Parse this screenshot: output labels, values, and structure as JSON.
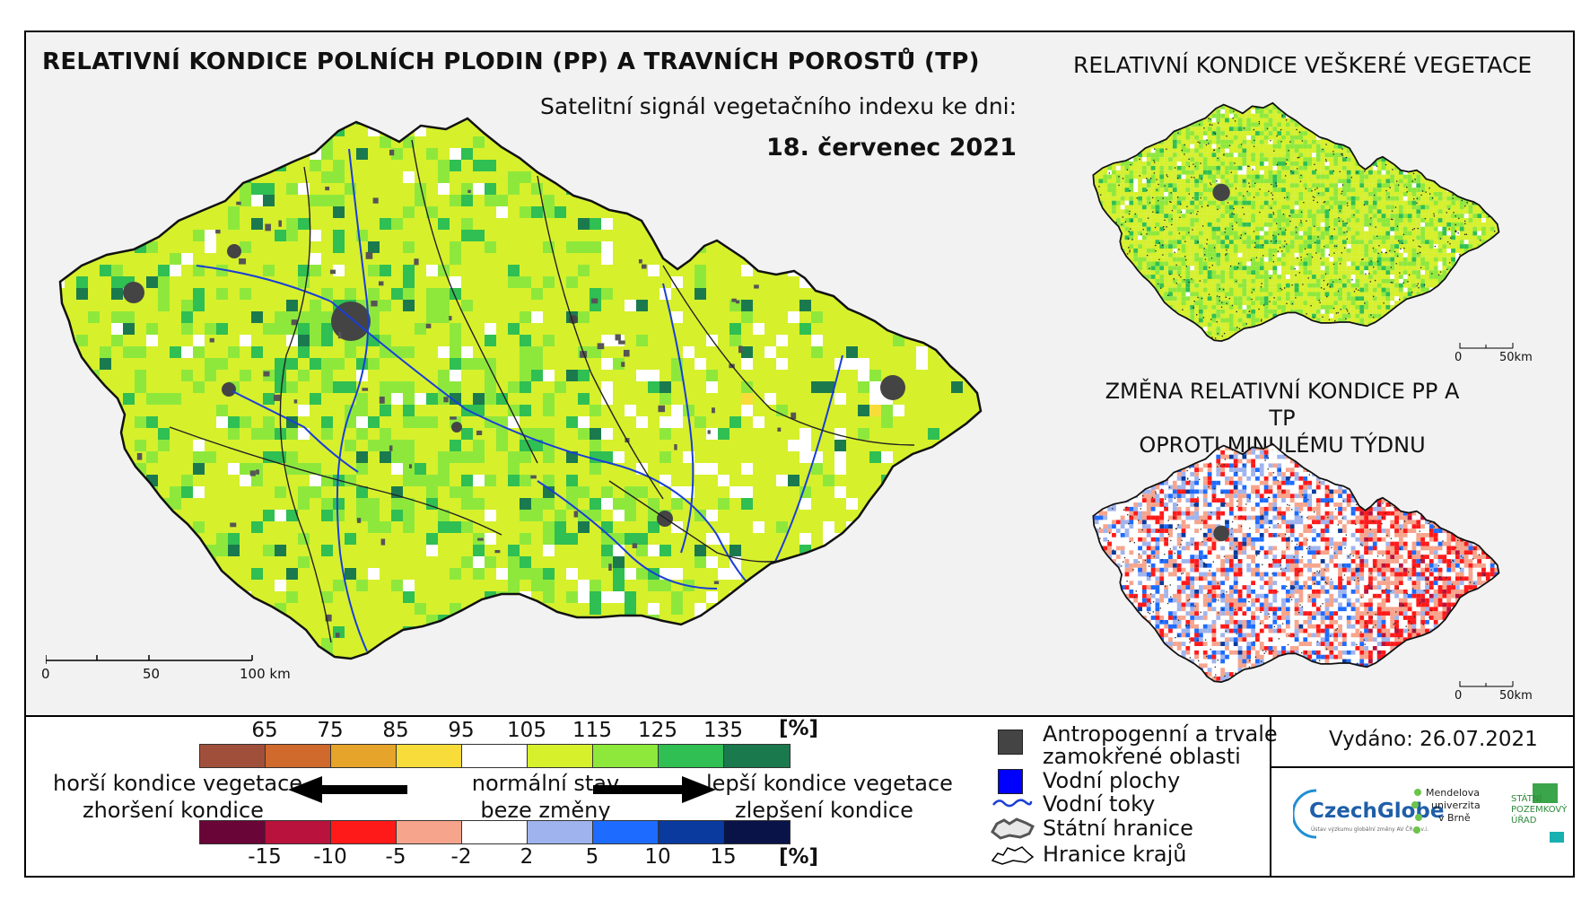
{
  "title": "RELATIVNÍ KONDICE POLNÍCH PLODIN (PP) A TRAVNÍCH POROSTŮ (TP)",
  "subtitle": "Satelitní signál vegetačního indexu ke dni:",
  "date": "18. červenec 2021",
  "inset_top": {
    "title": "RELATIVNÍ KONDICE VEŠKERÉ VEGETACE",
    "scale": [
      "0",
      "50km"
    ]
  },
  "inset_bottom": {
    "title_line1": "ZMĚNA RELATIVNÍ KONDICE PP A TP",
    "title_line2": "OPROTI MINULÉMU TÝDNU",
    "scale": [
      "0",
      "50km"
    ]
  },
  "main_scale": [
    "0",
    "50",
    "100 km"
  ],
  "legend_condition": {
    "ticks": [
      "65",
      "75",
      "85",
      "95",
      "105",
      "115",
      "125",
      "135"
    ],
    "unit": "[%]",
    "colors": [
      "#a0503a",
      "#d0692c",
      "#e6a42a",
      "#f7dc3a",
      "#ffffff",
      "#d6f02c",
      "#8ee83c",
      "#2fbf52",
      "#1a7a4e"
    ]
  },
  "legend_change": {
    "ticks": [
      "-15",
      "-10",
      "-5",
      "-2",
      "2",
      "5",
      "10",
      "15"
    ],
    "unit": "[%]",
    "colors": [
      "#6a0538",
      "#b9123c",
      "#ff1a1a",
      "#f7a48c",
      "#ffffff",
      "#9fb4ee",
      "#1e6cff",
      "#0b3a9e",
      "#0a1348"
    ]
  },
  "descriptions": {
    "worse": "horší kondice vegetace",
    "normal": "normální stav",
    "better": "lepší kondice vegetace",
    "worsening": "zhoršení kondice",
    "nochange": "beze změny",
    "improvement": "zlepšení kondice"
  },
  "map_legend": {
    "anthropogenic_l1": "Antropogenní a trvale",
    "anthropogenic_l2": "zamokřené oblasti",
    "water_bodies": "Vodní plochy",
    "rivers": "Vodní toky",
    "state_border": "Státní hranice",
    "region_border": "Hranice krajů"
  },
  "issued": "Vydáno: 26.07.2021",
  "logos": {
    "czechglobe": "CzechGlobe",
    "czechglobe_small": "Ústav výzkumu globální změny AV ČR, v.v.i.",
    "mendel": [
      "Mendelova",
      "univerzita",
      "v Brně"
    ],
    "spu": [
      "STÁTNÍ",
      "POZEMKOVÝ",
      "ÚŘAD"
    ]
  },
  "colors": {
    "anthropogenic": "#444444",
    "water": "#0000ff",
    "river": "#1a3fd6"
  }
}
